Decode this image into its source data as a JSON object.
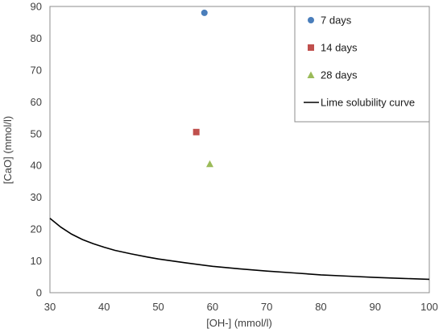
{
  "chart_data": {
    "type": "scatter",
    "title": "",
    "xlabel": "[OH-] (mmol/l)",
    "ylabel": "[CaO] (mmol/l)",
    "xlim": [
      30,
      100
    ],
    "ylim": [
      0,
      90
    ],
    "xticks": [
      30,
      40,
      50,
      60,
      70,
      80,
      90,
      100
    ],
    "yticks": [
      0,
      10,
      20,
      30,
      40,
      50,
      60,
      70,
      80,
      90
    ],
    "grid": false,
    "legend_position": "top-right",
    "series": [
      {
        "name": "7 days",
        "marker": "circle",
        "color": "#4a7ebb",
        "points": [
          {
            "x": 58.5,
            "y": 88
          }
        ]
      },
      {
        "name": "14 days",
        "marker": "square",
        "color": "#c0504d",
        "points": [
          {
            "x": 57,
            "y": 50.5
          }
        ]
      },
      {
        "name": "28 days",
        "marker": "triangle",
        "color": "#9bbb59",
        "points": [
          {
            "x": 59.5,
            "y": 40.5
          }
        ]
      },
      {
        "name": "Lime solubility curve",
        "marker": "line",
        "color": "#000000",
        "points": [
          {
            "x": 30,
            "y": 23.4
          },
          {
            "x": 32,
            "y": 20.6
          },
          {
            "x": 34,
            "y": 18.4
          },
          {
            "x": 36,
            "y": 16.7
          },
          {
            "x": 38,
            "y": 15.4
          },
          {
            "x": 40,
            "y": 14.3
          },
          {
            "x": 42,
            "y": 13.3
          },
          {
            "x": 45,
            "y": 12.2
          },
          {
            "x": 48,
            "y": 11.2
          },
          {
            "x": 50,
            "y": 10.6
          },
          {
            "x": 55,
            "y": 9.4
          },
          {
            "x": 60,
            "y": 8.3
          },
          {
            "x": 65,
            "y": 7.5
          },
          {
            "x": 70,
            "y": 6.8
          },
          {
            "x": 75,
            "y": 6.2
          },
          {
            "x": 80,
            "y": 5.6
          },
          {
            "x": 85,
            "y": 5.2
          },
          {
            "x": 90,
            "y": 4.8
          },
          {
            "x": 95,
            "y": 4.5
          },
          {
            "x": 100,
            "y": 4.2
          }
        ]
      }
    ]
  }
}
